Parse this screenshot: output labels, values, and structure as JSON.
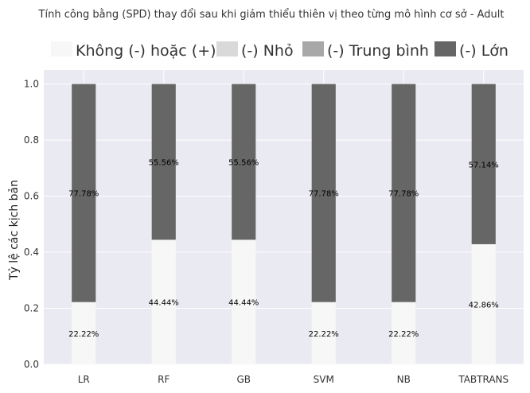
{
  "chart_data": {
    "type": "bar",
    "stacked": true,
    "title": "Tính công bằng (SPD) thay đổi sau khi giảm thiểu thiên vị theo từng mô hình cơ sở - Adult",
    "xlabel": "",
    "ylabel": "Tỷ lệ các kịch bản",
    "ylim": [
      0,
      1.05
    ],
    "yticks": [
      "0.0",
      "0.2",
      "0.4",
      "0.6",
      "0.8",
      "1.0"
    ],
    "categories": [
      "LR",
      "RF",
      "GB",
      "SVM",
      "NB",
      "TABTRANS"
    ],
    "legend_position": "top",
    "grid": true,
    "series": [
      {
        "name": "Không (-) hoặc (+)",
        "color": "#f7f7f7",
        "values": [
          0.2222,
          0.4444,
          0.4444,
          0.2222,
          0.2222,
          0.4286
        ],
        "labels": [
          "22.22%",
          "44.44%",
          "44.44%",
          "22.22%",
          "22.22%",
          "42.86%"
        ]
      },
      {
        "name": "(-) Nhỏ",
        "color": "#d9d9d9",
        "values": [
          0,
          0,
          0,
          0,
          0,
          0
        ],
        "labels": []
      },
      {
        "name": "(-) Trung bình",
        "color": "#a8a8a8",
        "values": [
          0,
          0,
          0,
          0,
          0,
          0
        ],
        "labels": []
      },
      {
        "name": "(-) Lớn",
        "color": "#666666",
        "values": [
          0.7778,
          0.5556,
          0.5556,
          0.7778,
          0.7778,
          0.5714
        ],
        "labels": [
          "77.78%",
          "55.56%",
          "55.56%",
          "77.78%",
          "77.78%",
          "57.14%"
        ]
      }
    ]
  }
}
